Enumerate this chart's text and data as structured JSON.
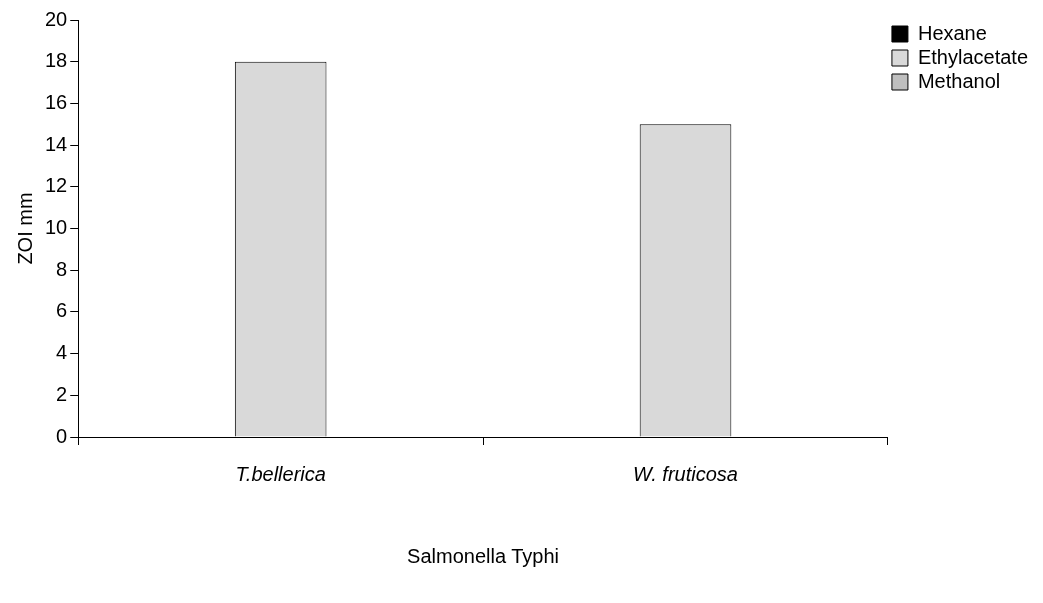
{
  "chart_data": {
    "type": "bar",
    "xlabel": "Salmonella Typhi",
    "ylabel": "ZOI mm",
    "categories": [
      "T.bellerica",
      "W. fruticosa"
    ],
    "series": [
      {
        "name": "Hexane",
        "color": "#000000",
        "values": [
          0,
          0
        ]
      },
      {
        "name": "Ethylacetate",
        "color": "#d9d9d9",
        "values": [
          18,
          15
        ]
      },
      {
        "name": "Methanol",
        "color": "#bfbfbf",
        "values": [
          0,
          0
        ]
      }
    ],
    "ylim": [
      0,
      20
    ],
    "yticks": [
      0,
      2,
      4,
      6,
      8,
      10,
      12,
      14,
      16,
      18,
      20
    ],
    "grid": false,
    "legend": "top right"
  }
}
